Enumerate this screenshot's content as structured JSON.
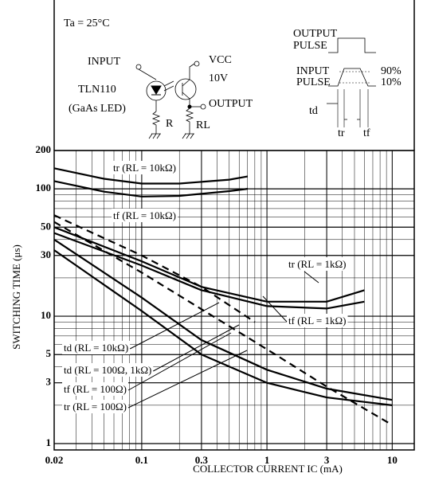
{
  "circuit": {
    "ambient": "Ta = 25°C",
    "input": "INPUT",
    "vcc": "VCC",
    "vcc_value": "10V",
    "led": "TLN110",
    "led_type": "(GaAs LED)",
    "r": "R",
    "rl": "RL",
    "output": "OUTPUT",
    "output_pulse": [
      "OUTPUT",
      "PULSE"
    ],
    "input_pulse": [
      "INPUT",
      "PULSE"
    ],
    "level_high": "90%",
    "level_low": "10%",
    "td": "td",
    "tr": "tr",
    "tf": "tf"
  },
  "chart_data": {
    "type": "line",
    "x_label": "COLLECTOR CURRENT IC (mA)",
    "y_label": "SWITCHING TIME (μs)",
    "log_x": true,
    "log_y": true,
    "grid": true,
    "xlim": [
      0.02,
      15
    ],
    "xticks": [
      0.02,
      0.1,
      0.3,
      1,
      3,
      10
    ],
    "ylim": [
      1,
      200
    ],
    "yticks": [
      1,
      3,
      5,
      10,
      30,
      50,
      100,
      200
    ],
    "series": [
      {
        "name": "tr (RL = 10kΩ)",
        "color": "#000000",
        "linestyle": "solid",
        "x": [
          0.02,
          0.05,
          0.1,
          0.2,
          0.5,
          0.7
        ],
        "values": [
          145,
          120,
          110,
          110,
          118,
          125
        ]
      },
      {
        "name": "tf (RL = 10kΩ)",
        "color": "#000000",
        "linestyle": "solid",
        "x": [
          0.02,
          0.05,
          0.1,
          0.2,
          0.5,
          0.7
        ],
        "values": [
          115,
          95,
          87,
          88,
          96,
          100
        ]
      },
      {
        "name": "tr (RL = 1kΩ)",
        "color": "#000000",
        "linestyle": "solid",
        "x": [
          0.02,
          0.1,
          0.3,
          1,
          3,
          6
        ],
        "values": [
          50,
          27,
          17,
          13,
          13,
          16
        ]
      },
      {
        "name": "tf (RL = 1kΩ)",
        "color": "#000000",
        "linestyle": "solid",
        "x": [
          0.02,
          0.1,
          0.3,
          1,
          3,
          6
        ],
        "values": [
          45,
          25,
          16,
          12,
          11.5,
          13
        ]
      },
      {
        "name": "td (RL = 10kΩ)",
        "color": "#000000",
        "linestyle": "dashed",
        "x": [
          0.02,
          0.1,
          0.3,
          0.8
        ],
        "values": [
          62,
          30,
          17,
          9
        ]
      },
      {
        "name": "td (RL = 100Ω, 1kΩ)",
        "color": "#000000",
        "linestyle": "dashed",
        "x": [
          0.02,
          0.1,
          1,
          3,
          10
        ],
        "values": [
          55,
          22,
          5.5,
          2.8,
          1.4
        ]
      },
      {
        "name": "tf (RL = 100Ω)",
        "color": "#000000",
        "linestyle": "solid",
        "x": [
          0.02,
          0.1,
          0.3,
          1,
          3,
          10
        ],
        "values": [
          40,
          14,
          6.5,
          3.8,
          2.7,
          2.2
        ]
      },
      {
        "name": "tr (RL = 100Ω)",
        "color": "#000000",
        "linestyle": "solid",
        "x": [
          0.02,
          0.1,
          0.3,
          1,
          3,
          10
        ],
        "values": [
          33,
          11,
          5,
          3,
          2.3,
          2.0
        ]
      }
    ]
  }
}
